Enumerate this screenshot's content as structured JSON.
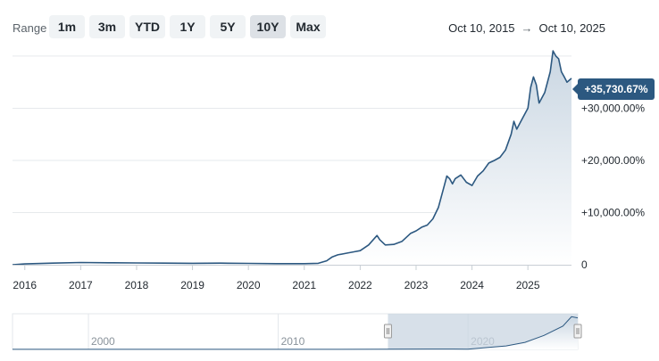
{
  "range": {
    "label": "Range",
    "buttons": [
      {
        "label": "1m",
        "active": false
      },
      {
        "label": "3m",
        "active": false
      },
      {
        "label": "YTD",
        "active": false
      },
      {
        "label": "1Y",
        "active": false
      },
      {
        "label": "5Y",
        "active": false
      },
      {
        "label": "10Y",
        "active": true
      },
      {
        "label": "Max",
        "active": false
      }
    ]
  },
  "dates": {
    "start": "Oct 10, 2015",
    "arrow": "→",
    "end": "Oct 10, 2025"
  },
  "badge": {
    "value": "+35,730.67%"
  },
  "colors": {
    "line": "#2c5880",
    "fill_top": "#c9d6e2",
    "fill_bottom": "#ffffff",
    "badge": "#2c5880",
    "navigator_mask": "#c9d6e2",
    "grid": "#e6e9ec"
  },
  "chart_data": {
    "type": "area",
    "ylabel": "",
    "y_ticks": [
      "0",
      "+10,000.00%",
      "+20,000.00%",
      "+30,000.00%"
    ],
    "y_tick_values": [
      0,
      10000,
      20000,
      30000
    ],
    "ylim": [
      0,
      40500
    ],
    "xlim": [
      2015.78,
      2025.78
    ],
    "x_ticks": [
      "2016",
      "2017",
      "2018",
      "2019",
      "2020",
      "2021",
      "2022",
      "2023",
      "2024",
      "2025"
    ],
    "x_tick_values": [
      2016,
      2017,
      2018,
      2019,
      2020,
      2021,
      2022,
      2023,
      2024,
      2025
    ],
    "grid": true,
    "last_value": 35730.67,
    "series": [
      {
        "x": [
          2015.78,
          2016.0,
          2016.5,
          2017.0,
          2017.5,
          2018.0,
          2018.5,
          2019.0,
          2019.5,
          2020.0,
          2020.5,
          2021.0,
          2021.25,
          2021.4,
          2021.5,
          2021.6,
          2021.75,
          2021.9,
          2022.0,
          2022.15,
          2022.3,
          2022.35,
          2022.45,
          2022.6,
          2022.75,
          2022.9,
          2023.0,
          2023.1,
          2023.2,
          2023.3,
          2023.4,
          2023.5,
          2023.55,
          2023.6,
          2023.65,
          2023.7,
          2023.8,
          2023.9,
          2024.0,
          2024.1,
          2024.2,
          2024.3,
          2024.4,
          2024.5,
          2024.6,
          2024.7,
          2024.75,
          2024.8,
          2024.9,
          2025.0,
          2025.05,
          2025.1,
          2025.15,
          2025.2,
          2025.3,
          2025.4,
          2025.45,
          2025.5,
          2025.55,
          2025.6,
          2025.65,
          2025.7,
          2025.78
        ],
        "y": [
          0,
          150,
          300,
          420,
          380,
          350,
          300,
          280,
          300,
          250,
          200,
          200,
          280,
          750,
          1500,
          1900,
          2200,
          2500,
          2700,
          3800,
          5600,
          4800,
          3800,
          3900,
          4500,
          6000,
          6500,
          7200,
          7600,
          8800,
          11000,
          15000,
          17000,
          16500,
          15500,
          16500,
          17200,
          15800,
          15200,
          17000,
          18000,
          19500,
          20000,
          20600,
          22000,
          25000,
          27500,
          26000,
          28000,
          30000,
          34000,
          36000,
          34500,
          31000,
          33000,
          37000,
          41000,
          40000,
          39500,
          37000,
          36000,
          35000,
          35730.67
        ]
      }
    ]
  },
  "navigator": {
    "labels": [
      "2000",
      "2010",
      "2020"
    ],
    "label_years": [
      2000,
      2010,
      2020
    ],
    "xlim": [
      1996.0,
      2025.78
    ],
    "window": [
      2015.78,
      2025.78
    ],
    "series": {
      "x": [
        1996.0,
        2005.0,
        2010.0,
        2015.78,
        2018.0,
        2020.0,
        2021.0,
        2022.0,
        2023.0,
        2024.0,
        2025.0,
        2025.45,
        2025.78
      ],
      "y": [
        0.02,
        0.03,
        0.05,
        0.08,
        0.15,
        0.1,
        0.8,
        1.5,
        3.0,
        6.0,
        10.0,
        14.0,
        13.5
      ]
    },
    "ylim": [
      0,
      14.5
    ],
    "handle_glyph": "⫴"
  }
}
